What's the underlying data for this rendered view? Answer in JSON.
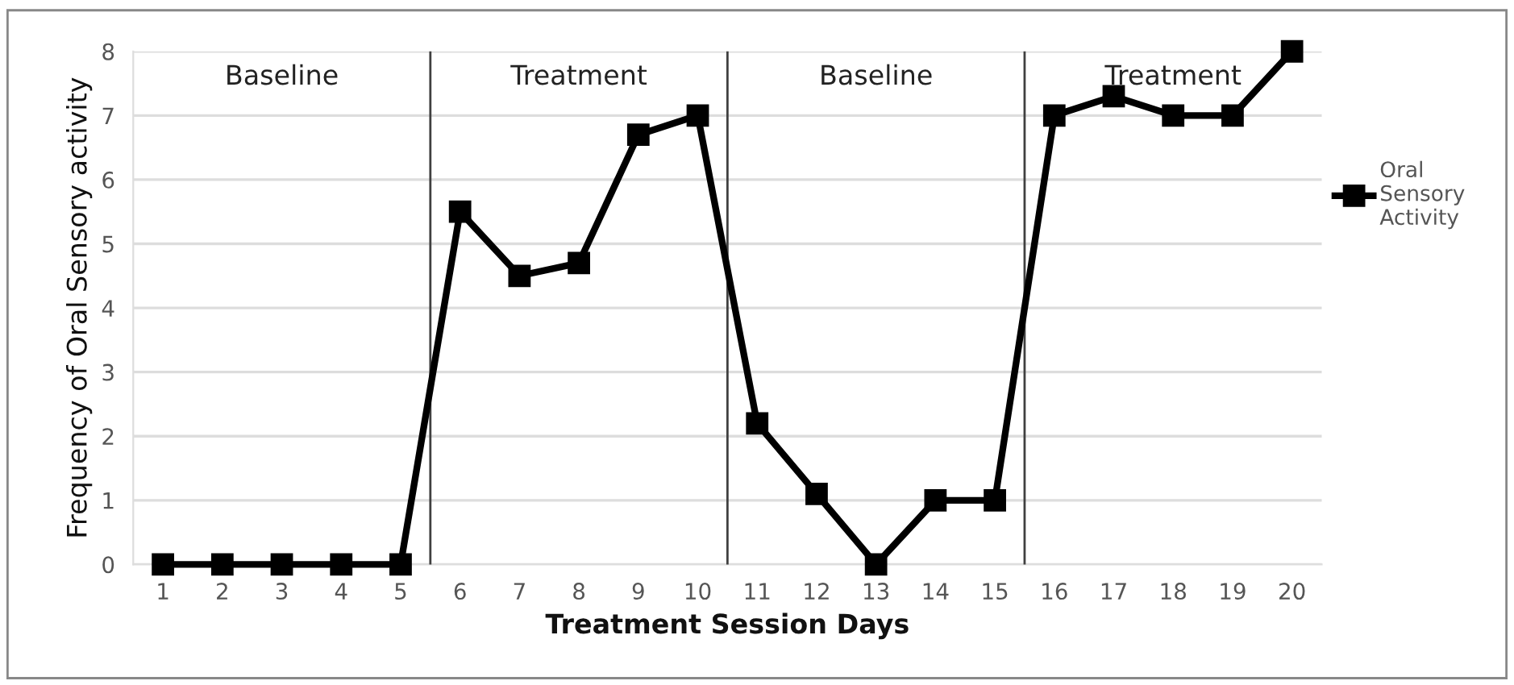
{
  "chart_data": {
    "type": "line",
    "xlabel": "Treatment Session Days",
    "ylabel": "Frequency of Oral Sensory activity",
    "x": [
      1,
      2,
      3,
      4,
      5,
      6,
      7,
      8,
      9,
      10,
      11,
      12,
      13,
      14,
      15,
      16,
      17,
      18,
      19,
      20
    ],
    "series": [
      {
        "name": "Oral Sensory Activity",
        "color": "#000000",
        "values": [
          0,
          0,
          0,
          0,
          0,
          5.5,
          4.5,
          4.7,
          6.7,
          7,
          2.2,
          1.1,
          0,
          1,
          1,
          7,
          7.3,
          7,
          7,
          8
        ]
      }
    ],
    "xlim": [
      0.5,
      20.5
    ],
    "xticks": [
      1,
      2,
      3,
      4,
      5,
      6,
      7,
      8,
      9,
      10,
      11,
      12,
      13,
      14,
      15,
      16,
      17,
      18,
      19,
      20
    ],
    "ylim": [
      0,
      8
    ],
    "yticks": [
      0,
      1,
      2,
      3,
      4,
      5,
      6,
      7,
      8
    ],
    "grid": "y",
    "legend": "right",
    "marker": "square",
    "line_style": "solid",
    "ref_lines": [
      {
        "axis": "x",
        "value": 5.5,
        "color": "#404040"
      },
      {
        "axis": "x",
        "value": 10.5,
        "color": "#404040"
      },
      {
        "axis": "x",
        "value": 15.5,
        "color": "#404040"
      }
    ],
    "annotations": [
      "Baseline",
      "Treatment",
      "Baseline",
      "Treatment"
    ]
  }
}
